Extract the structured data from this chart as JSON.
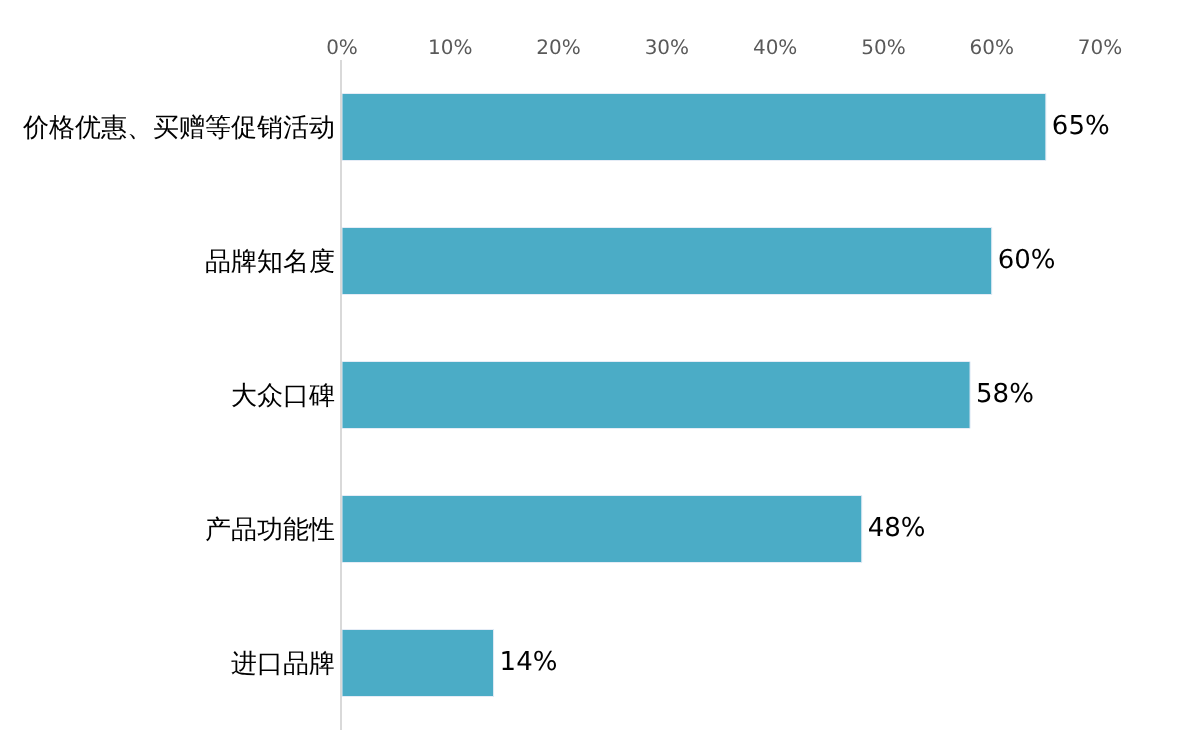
{
  "chart_data": {
    "type": "bar",
    "orientation": "horizontal",
    "categories": [
      "价格优惠、买赠等促销活动",
      "品牌知名度",
      "大众口碑",
      "产品功能性",
      "进口品牌"
    ],
    "values": [
      65,
      60,
      58,
      48,
      14
    ],
    "color": "#4bacc6",
    "value_labels": [
      "65%",
      "60%",
      "58%",
      "48%",
      "14%"
    ],
    "xlim": [
      0,
      70
    ],
    "xticks": [
      {
        "value": 0,
        "label": "0%"
      },
      {
        "value": 10,
        "label": "10%"
      },
      {
        "value": 20,
        "label": "20%"
      },
      {
        "value": 30,
        "label": "30%"
      },
      {
        "value": 40,
        "label": "40%"
      },
      {
        "value": 50,
        "label": "50%"
      },
      {
        "value": 60,
        "label": "60%"
      },
      {
        "value": 70,
        "label": "70%"
      }
    ],
    "legend": false
  }
}
